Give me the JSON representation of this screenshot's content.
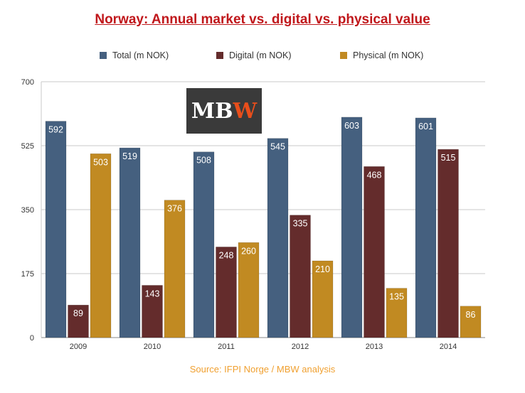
{
  "title": "Norway: Annual market vs. digital vs. physical value",
  "logo": {
    "text_main": "MB",
    "text_accent": "W"
  },
  "source": "Source: IFPI Norge / MBW analysis",
  "colors": {
    "total": "#45607f",
    "digital": "#642c2c",
    "physical": "#c18a22",
    "title": "#c0171b",
    "source": "#f0a030"
  },
  "chart_data": {
    "type": "bar",
    "title": "Norway: Annual market vs. digital vs. physical value",
    "xlabel": "",
    "ylabel": "",
    "ylim": [
      0,
      700
    ],
    "yticks": [
      0,
      175,
      350,
      525,
      700
    ],
    "grid": true,
    "legend": "top",
    "categories": [
      "2009",
      "2010",
      "2011",
      "2012",
      "2013",
      "2014"
    ],
    "series": [
      {
        "name": "Total (m NOK)",
        "values": [
          592,
          519,
          508,
          545,
          603,
          601
        ]
      },
      {
        "name": "Digital (m NOK)",
        "values": [
          89,
          143,
          248,
          335,
          468,
          515
        ]
      },
      {
        "name": "Physical (m NOK)",
        "values": [
          503,
          376,
          260,
          210,
          135,
          86
        ]
      }
    ]
  }
}
